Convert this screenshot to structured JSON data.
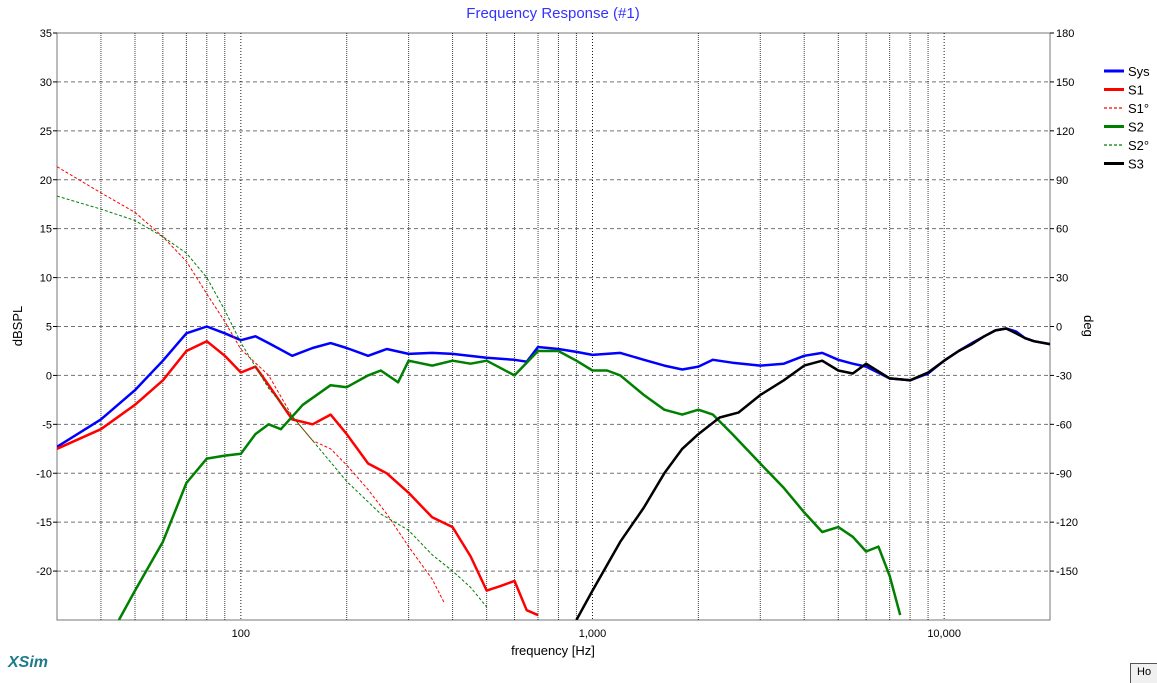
{
  "brand": "XSim",
  "corner_button": "Ho",
  "chart_data": {
    "type": "line",
    "title": "Frequency Response (#1)",
    "xlabel": "frequency [Hz]",
    "ylabel_left": "dBSPL",
    "ylabel_right": "deg",
    "x_scale": "log",
    "xlim": [
      30,
      20000
    ],
    "ylim_left": [
      -25,
      35
    ],
    "ylim_right": [
      -180,
      180
    ],
    "x_ticks": [
      {
        "value": 100,
        "label": "100"
      },
      {
        "value": 1000,
        "label": "1,000"
      },
      {
        "value": 10000,
        "label": "10,000"
      }
    ],
    "y_ticks_left": [
      35,
      30,
      25,
      20,
      15,
      10,
      5,
      0,
      -5,
      -10,
      -15,
      -20
    ],
    "y_ticks_right": [
      180,
      150,
      120,
      90,
      60,
      30,
      0,
      -30,
      -60,
      -90,
      -120,
      -150
    ],
    "grid": true,
    "legend_position": "right",
    "series": [
      {
        "name": "Sys",
        "color": "#0000ff",
        "style": "solid",
        "axis": "left",
        "points": [
          [
            30,
            -7.3
          ],
          [
            35,
            -5.8
          ],
          [
            40,
            -4.5
          ],
          [
            50,
            -1.5
          ],
          [
            60,
            1.5
          ],
          [
            70,
            4.3
          ],
          [
            80,
            5.0
          ],
          [
            90,
            4.3
          ],
          [
            100,
            3.6
          ],
          [
            110,
            4.0
          ],
          [
            120,
            3.3
          ],
          [
            140,
            2.0
          ],
          [
            160,
            2.8
          ],
          [
            180,
            3.3
          ],
          [
            200,
            2.8
          ],
          [
            230,
            2.0
          ],
          [
            260,
            2.7
          ],
          [
            300,
            2.2
          ],
          [
            350,
            2.3
          ],
          [
            400,
            2.2
          ],
          [
            500,
            1.8
          ],
          [
            600,
            1.6
          ],
          [
            650,
            1.4
          ],
          [
            700,
            2.9
          ],
          [
            800,
            2.7
          ],
          [
            900,
            2.4
          ],
          [
            1000,
            2.1
          ],
          [
            1200,
            2.3
          ],
          [
            1400,
            1.6
          ],
          [
            1600,
            1.0
          ],
          [
            1800,
            0.6
          ],
          [
            2000,
            0.9
          ],
          [
            2200,
            1.6
          ],
          [
            2500,
            1.3
          ],
          [
            3000,
            1.0
          ],
          [
            3500,
            1.2
          ],
          [
            4000,
            2.0
          ],
          [
            4500,
            2.3
          ],
          [
            5000,
            1.6
          ],
          [
            5500,
            1.2
          ],
          [
            6000,
            0.9
          ],
          [
            7000,
            -0.3
          ],
          [
            8000,
            -0.5
          ],
          [
            9000,
            0.2
          ],
          [
            10000,
            1.5
          ],
          [
            11000,
            2.5
          ],
          [
            12000,
            3.3
          ],
          [
            13000,
            4.0
          ],
          [
            14000,
            4.6
          ],
          [
            15000,
            4.8
          ],
          [
            16000,
            4.5
          ],
          [
            17000,
            3.8
          ],
          [
            18000,
            3.5
          ],
          [
            20000,
            3.2
          ]
        ]
      },
      {
        "name": "S1",
        "color": "#ff0000",
        "style": "solid",
        "axis": "left",
        "points": [
          [
            30,
            -7.5
          ],
          [
            40,
            -5.5
          ],
          [
            50,
            -3.0
          ],
          [
            60,
            -0.5
          ],
          [
            70,
            2.5
          ],
          [
            80,
            3.5
          ],
          [
            90,
            2.0
          ],
          [
            100,
            0.3
          ],
          [
            110,
            0.9
          ],
          [
            120,
            -1.0
          ],
          [
            140,
            -4.5
          ],
          [
            160,
            -5.0
          ],
          [
            180,
            -4.0
          ],
          [
            200,
            -6.0
          ],
          [
            230,
            -9.0
          ],
          [
            260,
            -10.0
          ],
          [
            300,
            -12.0
          ],
          [
            350,
            -14.5
          ],
          [
            400,
            -15.5
          ],
          [
            450,
            -18.5
          ],
          [
            500,
            -22.0
          ],
          [
            550,
            -21.5
          ],
          [
            600,
            -21.0
          ],
          [
            650,
            -24.0
          ],
          [
            700,
            -24.5
          ]
        ]
      },
      {
        "name": "S1°",
        "color": "#ff0000",
        "style": "dashed",
        "axis": "right",
        "points": [
          [
            30,
            98
          ],
          [
            40,
            82
          ],
          [
            50,
            70
          ],
          [
            60,
            55
          ],
          [
            70,
            40
          ],
          [
            80,
            20
          ],
          [
            90,
            3
          ],
          [
            100,
            -14
          ],
          [
            120,
            -30
          ],
          [
            140,
            -55
          ],
          [
            160,
            -70
          ],
          [
            180,
            -75
          ],
          [
            200,
            -85
          ],
          [
            230,
            -100
          ],
          [
            260,
            -115
          ],
          [
            300,
            -135
          ],
          [
            350,
            -155
          ],
          [
            380,
            -170
          ]
        ]
      },
      {
        "name": "S2",
        "color": "#008000",
        "style": "solid",
        "axis": "left",
        "points": [
          [
            45,
            -25.0
          ],
          [
            50,
            -22.0
          ],
          [
            60,
            -17.0
          ],
          [
            70,
            -11.0
          ],
          [
            80,
            -8.5
          ],
          [
            90,
            -8.2
          ],
          [
            100,
            -8.0
          ],
          [
            110,
            -6.0
          ],
          [
            120,
            -5.0
          ],
          [
            130,
            -5.5
          ],
          [
            150,
            -3.0
          ],
          [
            180,
            -1.0
          ],
          [
            200,
            -1.2
          ],
          [
            230,
            0.0
          ],
          [
            250,
            0.5
          ],
          [
            280,
            -0.7
          ],
          [
            300,
            1.5
          ],
          [
            350,
            1.0
          ],
          [
            400,
            1.5
          ],
          [
            450,
            1.2
          ],
          [
            500,
            1.5
          ],
          [
            600,
            0.0
          ],
          [
            700,
            2.5
          ],
          [
            800,
            2.5
          ],
          [
            900,
            1.5
          ],
          [
            1000,
            0.5
          ],
          [
            1100,
            0.5
          ],
          [
            1200,
            0.0
          ],
          [
            1400,
            -2.0
          ],
          [
            1600,
            -3.5
          ],
          [
            1800,
            -4.0
          ],
          [
            2000,
            -3.5
          ],
          [
            2200,
            -4.0
          ],
          [
            2500,
            -6.0
          ],
          [
            3000,
            -9.0
          ],
          [
            3500,
            -11.5
          ],
          [
            4000,
            -14.0
          ],
          [
            4500,
            -16.0
          ],
          [
            5000,
            -15.5
          ],
          [
            5500,
            -16.5
          ],
          [
            6000,
            -18.0
          ],
          [
            6500,
            -17.5
          ],
          [
            7000,
            -20.5
          ],
          [
            7500,
            -24.5
          ]
        ]
      },
      {
        "name": "S2°",
        "color": "#008000",
        "style": "dashed",
        "axis": "right",
        "points": [
          [
            30,
            80
          ],
          [
            40,
            72
          ],
          [
            50,
            65
          ],
          [
            60,
            55
          ],
          [
            70,
            45
          ],
          [
            80,
            30
          ],
          [
            90,
            10
          ],
          [
            100,
            -10
          ],
          [
            120,
            -38
          ],
          [
            140,
            -55
          ],
          [
            160,
            -70
          ],
          [
            200,
            -95
          ],
          [
            250,
            -115
          ],
          [
            300,
            -125
          ],
          [
            350,
            -140
          ],
          [
            400,
            -150
          ],
          [
            450,
            -160
          ],
          [
            500,
            -172
          ]
        ]
      },
      {
        "name": "S3",
        "color": "#000000",
        "style": "solid",
        "axis": "left",
        "points": [
          [
            900,
            -25.0
          ],
          [
            1000,
            -22.0
          ],
          [
            1200,
            -17.0
          ],
          [
            1400,
            -13.5
          ],
          [
            1600,
            -10.0
          ],
          [
            1800,
            -7.5
          ],
          [
            2000,
            -6.0
          ],
          [
            2300,
            -4.3
          ],
          [
            2600,
            -3.8
          ],
          [
            3000,
            -2.0
          ],
          [
            3500,
            -0.5
          ],
          [
            4000,
            1.0
          ],
          [
            4500,
            1.5
          ],
          [
            5000,
            0.5
          ],
          [
            5500,
            0.2
          ],
          [
            6000,
            1.2
          ],
          [
            7000,
            -0.3
          ],
          [
            8000,
            -0.5
          ],
          [
            9000,
            0.3
          ],
          [
            10000,
            1.5
          ],
          [
            11000,
            2.5
          ],
          [
            12000,
            3.2
          ],
          [
            13000,
            4.0
          ],
          [
            14000,
            4.6
          ],
          [
            15000,
            4.8
          ],
          [
            16000,
            4.3
          ],
          [
            17000,
            3.8
          ],
          [
            18000,
            3.5
          ],
          [
            20000,
            3.2
          ]
        ]
      }
    ]
  }
}
